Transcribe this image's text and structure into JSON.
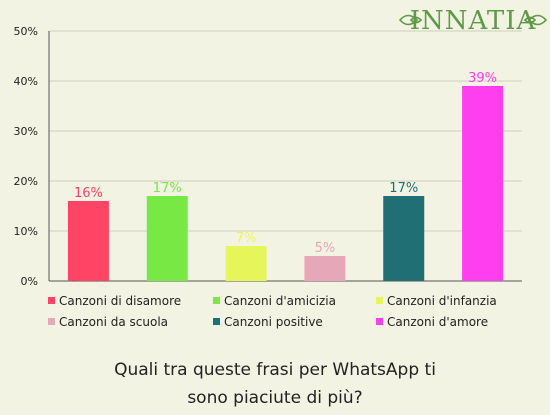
{
  "brand": {
    "logo_text": "INNATIA",
    "logo_color": "#5e9a48"
  },
  "caption": {
    "line1": "Quali tra queste frasi per WhatsApp ti",
    "line2": "sono piaciute di più?"
  },
  "chart_data": {
    "type": "bar",
    "categories": [
      "Canzoni di disamore",
      "Canzoni d'amicizia",
      "Canzoni d'infanzia",
      "Canzoni da scuola",
      "Canzoni positive",
      "Canzoni d'amore"
    ],
    "values": [
      16,
      17,
      7,
      5,
      17,
      39
    ],
    "value_labels": [
      "16%",
      "17%",
      "7%",
      "5%",
      "17%",
      "39%"
    ],
    "colors": [
      "#ff4466",
      "#77e844",
      "#e6f65a",
      "#e6a8b8",
      "#1f6f74",
      "#ff3ef0"
    ],
    "ylim": [
      0,
      50
    ],
    "yticks": [
      0,
      10,
      20,
      30,
      40,
      50
    ],
    "ytick_labels": [
      "0%",
      "10%",
      "20%",
      "30%",
      "40%",
      "50%"
    ],
    "grid": true,
    "legend_position": "bottom",
    "title": "",
    "xlabel": "",
    "ylabel": ""
  }
}
